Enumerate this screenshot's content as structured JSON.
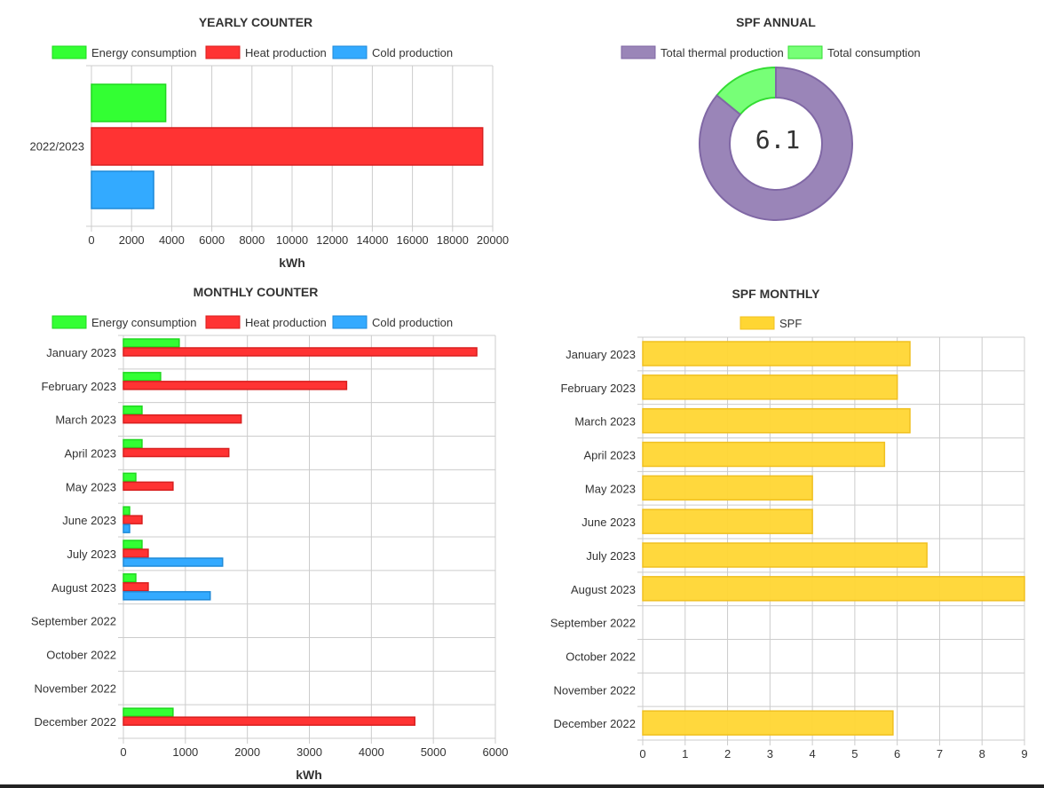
{
  "colors": {
    "energy": "#33ff33",
    "energy_border": "#1fd81f",
    "heat": "#ff3333",
    "heat_border": "#d81f1f",
    "cold": "#33aaff",
    "cold_border": "#1f8ad8",
    "thermal": "#9a85b8",
    "thermal_border": "#8068a5",
    "consumption": "#77ff77",
    "consumption_border": "#33dd33",
    "spf": "#ffd633",
    "spf_border": "#f0c020",
    "grid": "#cccccc"
  },
  "chart_data": [
    {
      "id": "yearly",
      "type": "bar",
      "orientation": "horizontal",
      "title": "YEARLY COUNTER",
      "categories": [
        "2022/2023"
      ],
      "series": [
        {
          "name": "Energy consumption",
          "values": [
            3700
          ]
        },
        {
          "name": "Heat production",
          "values": [
            19500
          ]
        },
        {
          "name": "Cold production",
          "values": [
            3100
          ]
        }
      ],
      "xlim": [
        0,
        20000
      ],
      "xticks": [
        "0",
        "2000",
        "4000",
        "6000",
        "8000",
        "10000",
        "12000",
        "14000",
        "16000",
        "18000",
        "20000"
      ],
      "xlabel": "kWh",
      "legend": "top"
    },
    {
      "id": "spf_annual",
      "type": "pie",
      "style": "doughnut",
      "title": "SPF ANNUAL",
      "labels": [
        "Total thermal production",
        "Total consumption"
      ],
      "values": [
        22600,
        3700
      ],
      "center_text": "6.1",
      "legend": "top"
    },
    {
      "id": "monthly",
      "type": "bar",
      "orientation": "horizontal",
      "title": "MONTHLY COUNTER",
      "categories": [
        "January 2023",
        "February 2023",
        "March 2023",
        "April 2023",
        "May 2023",
        "June 2023",
        "July 2023",
        "August 2023",
        "September 2022",
        "October 2022",
        "November 2022",
        "December 2022"
      ],
      "series": [
        {
          "name": "Energy consumption",
          "values": [
            900,
            600,
            300,
            300,
            200,
            100,
            300,
            200,
            0,
            0,
            0,
            800
          ]
        },
        {
          "name": "Heat production",
          "values": [
            5700,
            3600,
            1900,
            1700,
            800,
            300,
            400,
            400,
            0,
            0,
            0,
            4700
          ]
        },
        {
          "name": "Cold production",
          "values": [
            0,
            0,
            0,
            0,
            0,
            100,
            1600,
            1400,
            0,
            0,
            0,
            0
          ]
        }
      ],
      "xlim": [
        0,
        6000
      ],
      "xticks": [
        "0",
        "1000",
        "2000",
        "3000",
        "4000",
        "5000",
        "6000"
      ],
      "xlabel": "kWh",
      "legend": "top"
    },
    {
      "id": "spf_monthly",
      "type": "bar",
      "orientation": "horizontal",
      "title": "SPF MONTHLY",
      "categories": [
        "January 2023",
        "February 2023",
        "March 2023",
        "April 2023",
        "May 2023",
        "June 2023",
        "July 2023",
        "August 2023",
        "September 2022",
        "October 2022",
        "November 2022",
        "December 2022"
      ],
      "series": [
        {
          "name": "SPF",
          "values": [
            6.3,
            6.0,
            6.3,
            5.7,
            4.0,
            4.0,
            6.7,
            9.0,
            0,
            0,
            0,
            5.9
          ]
        }
      ],
      "xlim": [
        0,
        9
      ],
      "xticks": [
        "0",
        "1",
        "2",
        "3",
        "4",
        "5",
        "6",
        "7",
        "8",
        "9"
      ],
      "xlabel": "",
      "legend": "top"
    }
  ]
}
